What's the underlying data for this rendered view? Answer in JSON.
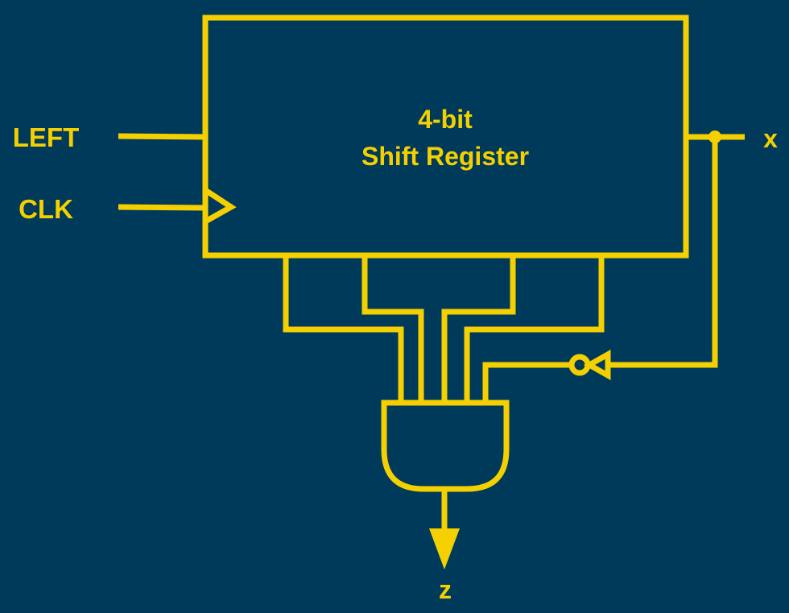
{
  "colors": {
    "background": "#003a5a",
    "wire": "#f5d000"
  },
  "register": {
    "title_line1": "4-bit",
    "title_line2": "Shift Register"
  },
  "inputs": {
    "left": "LEFT",
    "clk": "CLK"
  },
  "outputs": {
    "x": "x",
    "z": "z"
  },
  "gates": {
    "and_gate": "AND",
    "inverter": "NOT"
  }
}
